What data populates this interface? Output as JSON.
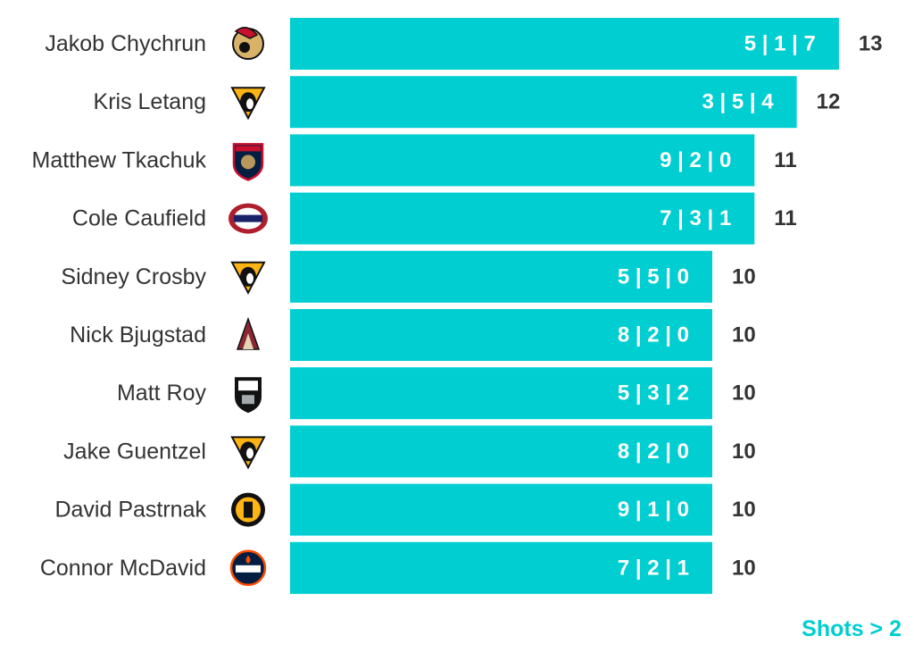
{
  "chart_data": {
    "type": "bar",
    "orientation": "horizontal",
    "bar_color": "#00ced1",
    "categories": [
      "Jakob Chychrun",
      "Kris Letang",
      "Matthew Tkachuk",
      "Cole Caufield",
      "Sidney Crosby",
      "Nick Bjugstad",
      "Matt Roy",
      "Jake Guentzel",
      "David Pastrnak",
      "Connor McDavid"
    ],
    "values": [
      13,
      12,
      11,
      11,
      10,
      10,
      10,
      10,
      10,
      10
    ],
    "bar_labels": [
      "5 | 1 | 7",
      "3 | 5 | 4",
      "9 | 2 | 0",
      "7 | 3 | 1",
      "5 | 5 | 0",
      "8 | 2 | 0",
      "5 | 3 | 2",
      "8 | 2 | 0",
      "9 | 1 | 0",
      "7 | 2 | 1"
    ],
    "teams": [
      {
        "icon": "senators-logo-icon",
        "color": "#c8102e"
      },
      {
        "icon": "penguins-logo-icon",
        "color": "#fcb514"
      },
      {
        "icon": "panthers-logo-icon",
        "color": "#041e42"
      },
      {
        "icon": "canadiens-logo-icon",
        "color": "#af1e2d"
      },
      {
        "icon": "penguins-logo-icon",
        "color": "#fcb514"
      },
      {
        "icon": "coyotes-logo-icon",
        "color": "#8c2633"
      },
      {
        "icon": "kings-logo-icon",
        "color": "#111111"
      },
      {
        "icon": "penguins-logo-icon",
        "color": "#fcb514"
      },
      {
        "icon": "bruins-logo-icon",
        "color": "#fcb514"
      },
      {
        "icon": "oilers-logo-icon",
        "color": "#041e42"
      }
    ],
    "xlim": [
      0,
      13
    ],
    "note": "Shots > 2"
  }
}
